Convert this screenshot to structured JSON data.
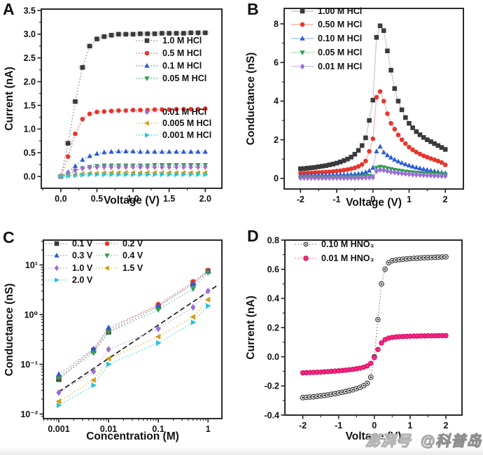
{
  "page": {
    "background": "#ffffff"
  },
  "watermark": {
    "platform": "澎湃号",
    "account": "@科普岛"
  },
  "palette": {
    "black": "#3a3a3a",
    "red": "#e8352c",
    "blue": "#2b5cd7",
    "green": "#2f9e50",
    "purple": "#9c6cd3",
    "gold": "#d49a18",
    "cyan": "#25c5d8",
    "pink": "#f5277f"
  },
  "chart_data": [
    {
      "panel_label": "A",
      "type": "line",
      "xlabel": "Voltage (V)",
      "ylabel": "Current (nA)",
      "xscale": "linear",
      "yscale": "linear",
      "xlim": [
        -0.27,
        2.23
      ],
      "ylim": [
        -0.25,
        3.53
      ],
      "xticks": [
        0,
        0.5,
        1,
        1.5,
        2
      ],
      "xtick_labels": [
        "0.0",
        "0.5",
        "1.0",
        "1.5",
        "2.0"
      ],
      "yticks": [
        0,
        0.5,
        1,
        1.5,
        2,
        2.5,
        3,
        3.5
      ],
      "ytick_labels": [
        "0.0",
        "0.5",
        "1.0",
        "1.5",
        "2.0",
        "2.5",
        "3.0",
        "3.5"
      ],
      "grid": false,
      "legend_position": "inside right, two groups",
      "x": [
        0,
        0.1,
        0.2,
        0.3,
        0.4,
        0.5,
        0.6,
        0.7,
        0.8,
        0.9,
        1.0,
        1.1,
        1.2,
        1.3,
        1.4,
        1.5,
        1.6,
        1.7,
        1.8,
        1.9,
        2.0
      ],
      "series": [
        {
          "name": "1.0 M HCl",
          "marker": "square",
          "color": "#3a3a3a",
          "line_color": "#8a8a8a",
          "line_style": "dotted",
          "halo": true,
          "values": [
            0.0,
            0.7,
            1.58,
            2.3,
            2.75,
            2.9,
            2.95,
            2.98,
            3.0,
            3.0,
            3.0,
            3.01,
            3.01,
            3.01,
            3.02,
            3.02,
            3.02,
            3.02,
            3.03,
            3.03,
            3.03
          ]
        },
        {
          "name": "0.5 M HCl",
          "marker": "circle",
          "color": "#e8352c",
          "line_color": "#ef5850",
          "line_style": "dotted",
          "values": [
            0.0,
            0.42,
            0.9,
            1.21,
            1.32,
            1.36,
            1.37,
            1.38,
            1.39,
            1.39,
            1.4,
            1.4,
            1.4,
            1.41,
            1.41,
            1.41,
            1.42,
            1.42,
            1.42,
            1.42,
            1.43
          ]
        },
        {
          "name": "0.1 M HCl",
          "marker": "triangle-up",
          "color": "#2b5cd7",
          "line_color": "#5b7ee0",
          "line_style": "dotted",
          "values": [
            0.0,
            0.09,
            0.22,
            0.35,
            0.43,
            0.48,
            0.51,
            0.52,
            0.53,
            0.53,
            0.53,
            0.52,
            0.52,
            0.52,
            0.52,
            0.52,
            0.52,
            0.52,
            0.52,
            0.52,
            0.52
          ]
        },
        {
          "name": "0.05 M HCl",
          "marker": "triangle-down",
          "color": "#2f9e50",
          "line_color": "#53ae74",
          "line_style": "dotted",
          "values": [
            0.0,
            0.05,
            0.12,
            0.17,
            0.2,
            0.22,
            0.23,
            0.23,
            0.23,
            0.23,
            0.23,
            0.23,
            0.23,
            0.24,
            0.24,
            0.24,
            0.24,
            0.24,
            0.24,
            0.24,
            0.24
          ]
        },
        {
          "name": "0.01 M HCl",
          "marker": "diamond",
          "color": "#9c6cd3",
          "line_color": "#b491e0",
          "line_style": "dotted",
          "values": [
            0.0,
            0.06,
            0.13,
            0.17,
            0.19,
            0.2,
            0.2,
            0.2,
            0.2,
            0.2,
            0.2,
            0.2,
            0.2,
            0.2,
            0.2,
            0.2,
            0.2,
            0.2,
            0.2,
            0.2,
            0.2
          ]
        },
        {
          "name": "0.005 M HCl",
          "marker": "triangle-left",
          "color": "#d49a18",
          "line_color": "#dfb23f",
          "line_style": "dotted",
          "values": [
            0.0,
            0.02,
            0.04,
            0.06,
            0.07,
            0.07,
            0.08,
            0.08,
            0.08,
            0.08,
            0.08,
            0.08,
            0.08,
            0.08,
            0.08,
            0.08,
            0.08,
            0.08,
            0.08,
            0.08,
            0.08
          ]
        },
        {
          "name": "0.001 M HCl",
          "marker": "triangle-right",
          "color": "#25c5d8",
          "line_color": "#3fd0de",
          "line_style": "dotted",
          "values": [
            0.0,
            0.01,
            0.02,
            0.03,
            0.04,
            0.04,
            0.04,
            0.04,
            0.04,
            0.04,
            0.04,
            0.04,
            0.04,
            0.04,
            0.04,
            0.04,
            0.04,
            0.04,
            0.04,
            0.04,
            0.04
          ]
        }
      ]
    },
    {
      "panel_label": "B",
      "type": "line",
      "xlabel": "Voltage (V)",
      "ylabel": "Conductance (nS)",
      "xscale": "linear",
      "yscale": "linear",
      "xlim": [
        -2.45,
        2.5
      ],
      "ylim": [
        -0.55,
        8.8
      ],
      "xticks": [
        -2,
        -1,
        0,
        1,
        2
      ],
      "xtick_labels": [
        "-2",
        "-1",
        "0",
        "1",
        "2"
      ],
      "yticks": [
        0,
        2,
        4,
        6,
        8
      ],
      "ytick_labels": [
        "0",
        "2",
        "4",
        "6",
        "8"
      ],
      "grid": false,
      "legend_position": "upper left",
      "x": [
        -2.0,
        -1.9,
        -1.8,
        -1.7,
        -1.6,
        -1.5,
        -1.4,
        -1.3,
        -1.2,
        -1.1,
        -1.0,
        -0.9,
        -0.8,
        -0.7,
        -0.6,
        -0.5,
        -0.4,
        -0.3,
        -0.2,
        -0.1,
        0.0,
        0.1,
        0.2,
        0.3,
        0.4,
        0.5,
        0.6,
        0.7,
        0.8,
        0.9,
        1.0,
        1.1,
        1.2,
        1.3,
        1.4,
        1.5,
        1.6,
        1.7,
        1.8,
        1.9,
        2.0
      ],
      "series": [
        {
          "name": "1.00 M HCl",
          "marker": "square",
          "color": "#3a3a3a",
          "line_color": "#c7c7c7",
          "line_style": "solid",
          "values": [
            0.5,
            0.51,
            0.53,
            0.55,
            0.57,
            0.6,
            0.63,
            0.66,
            0.7,
            0.74,
            0.79,
            0.85,
            0.92,
            1.0,
            1.1,
            1.25,
            1.45,
            1.7,
            2.1,
            3.0,
            4.05,
            7.3,
            7.9,
            7.65,
            6.6,
            5.6,
            4.65,
            4.0,
            3.55,
            3.15,
            2.85,
            2.62,
            2.42,
            2.26,
            2.12,
            2.0,
            1.9,
            1.8,
            1.7,
            1.6,
            1.5
          ]
        },
        {
          "name": "0.50 M HCl",
          "marker": "circle",
          "color": "#e8352c",
          "line_color": "#f5b5b0",
          "line_style": "solid",
          "values": [
            0.27,
            0.27,
            0.28,
            0.29,
            0.3,
            0.31,
            0.32,
            0.33,
            0.34,
            0.36,
            0.38,
            0.4,
            0.43,
            0.46,
            0.5,
            0.55,
            0.62,
            0.72,
            0.9,
            1.4,
            2.05,
            4.2,
            4.5,
            4.0,
            3.35,
            2.85,
            2.55,
            2.25,
            2.0,
            1.8,
            1.62,
            1.48,
            1.36,
            1.26,
            1.17,
            1.1,
            1.03,
            0.96,
            0.9,
            0.82,
            0.7
          ]
        },
        {
          "name": "0.10 M HCl",
          "marker": "triangle-up",
          "color": "#2b5cd7",
          "line_color": "#b5c5f0",
          "line_style": "solid",
          "values": [
            0.15,
            0.15,
            0.15,
            0.16,
            0.16,
            0.16,
            0.17,
            0.17,
            0.17,
            0.18,
            0.18,
            0.19,
            0.19,
            0.2,
            0.21,
            0.22,
            0.24,
            0.27,
            0.32,
            0.4,
            0.55,
            1.4,
            1.65,
            1.35,
            1.2,
            1.08,
            0.97,
            0.88,
            0.8,
            0.73,
            0.67,
            0.61,
            0.56,
            0.52,
            0.48,
            0.44,
            0.4,
            0.37,
            0.33,
            0.3,
            0.27
          ]
        },
        {
          "name": "0.05 M HCl",
          "marker": "triangle-down",
          "color": "#2f9e50",
          "line_color": "#bfe0c8",
          "line_style": "solid",
          "values": [
            0.05,
            0.05,
            0.05,
            0.05,
            0.05,
            0.05,
            0.05,
            0.06,
            0.06,
            0.06,
            0.06,
            0.07,
            0.07,
            0.07,
            0.08,
            0.08,
            0.09,
            0.1,
            0.11,
            0.13,
            0.1,
            0.55,
            0.6,
            0.57,
            0.52,
            0.48,
            0.44,
            0.41,
            0.38,
            0.35,
            0.33,
            0.31,
            0.29,
            0.28,
            0.26,
            0.25,
            0.24,
            0.23,
            0.22,
            0.21,
            0.2
          ]
        },
        {
          "name": "0.01 M HCl",
          "marker": "diamond",
          "color": "#9c6cd3",
          "line_color": "#d5c5ef",
          "line_style": "solid",
          "values": [
            0.02,
            0.02,
            0.02,
            0.02,
            0.02,
            0.02,
            0.02,
            0.02,
            0.02,
            0.02,
            0.02,
            0.02,
            0.02,
            0.02,
            0.02,
            0.02,
            0.03,
            0.03,
            0.04,
            0.05,
            0.05,
            0.38,
            0.45,
            0.42,
            0.38,
            0.34,
            0.31,
            0.28,
            0.26,
            0.24,
            0.22,
            0.2,
            0.19,
            0.18,
            0.17,
            0.16,
            0.15,
            0.14,
            0.13,
            0.12,
            0.12
          ]
        }
      ]
    },
    {
      "panel_label": "C",
      "type": "line",
      "xlabel": "Concentration (M)",
      "ylabel": "Conductance (nS)",
      "xscale": "log",
      "yscale": "log",
      "xlim": [
        0.00049,
        1.9
      ],
      "ylim": [
        0.0081,
        31.6
      ],
      "xticks": [
        0.001,
        0.01,
        0.1,
        1
      ],
      "xtick_labels": [
        "0.001",
        "0.01",
        "0.1",
        "1"
      ],
      "yticks": [
        0.01,
        0.1,
        1,
        10
      ],
      "ytick_labels": [
        "10⁻²",
        "10⁻¹",
        "10⁰",
        "10¹"
      ],
      "grid": false,
      "legend_position": "upper left, two columns",
      "x": [
        0.001,
        0.005,
        0.01,
        0.1,
        0.5,
        1
      ],
      "series": [
        {
          "name": "0.1 V",
          "marker": "square",
          "color": "#3a3a3a",
          "line_color": "#9a9a9a",
          "line_style": "dotted",
          "values": [
            0.05,
            0.19,
            0.45,
            1.45,
            4.3,
            7.5
          ]
        },
        {
          "name": "0.2 V",
          "marker": "circle",
          "color": "#e8352c",
          "line_color": "#f57f78",
          "line_style": "dotted",
          "values": [
            0.055,
            0.2,
            0.5,
            1.6,
            4.6,
            7.8
          ]
        },
        {
          "name": "0.3 V",
          "marker": "triangle-up",
          "color": "#2b5cd7",
          "line_color": "#8aa4e8",
          "line_style": "dotted",
          "values": [
            0.063,
            0.205,
            0.55,
            1.5,
            4.1,
            7.4
          ]
        },
        {
          "name": "0.4 V",
          "marker": "triangle-down",
          "color": "#2f9e50",
          "line_color": "#7cc695",
          "line_style": "dotted",
          "values": [
            0.052,
            0.17,
            0.44,
            1.25,
            3.3,
            7.0
          ]
        },
        {
          "name": "1.0 V",
          "marker": "diamond",
          "color": "#9c6cd3",
          "line_color": "#bfa3e8",
          "line_style": "dotted",
          "values": [
            0.027,
            0.072,
            0.2,
            0.52,
            1.4,
            3.0
          ]
        },
        {
          "name": "1.5 V",
          "marker": "triangle-left",
          "color": "#d49a18",
          "line_color": "#e8bc55",
          "line_style": "dotted",
          "values": [
            0.018,
            0.048,
            0.13,
            0.36,
            0.9,
            2.0
          ]
        },
        {
          "name": "2.0 V",
          "marker": "triangle-right",
          "color": "#25c5d8",
          "line_color": "#55d6e4",
          "line_style": "dotted",
          "values": [
            0.015,
            0.038,
            0.1,
            0.27,
            0.7,
            1.5
          ]
        }
      ],
      "ref_line": {
        "name": "linear-fit-dashed",
        "color": "#1a1a1a",
        "line_style": "dashed",
        "x": [
          0.001,
          1.5
        ],
        "values": [
          0.028,
          3.8
        ]
      }
    },
    {
      "panel_label": "D",
      "type": "line",
      "xlabel": "Voltage (V)",
      "ylabel": "Current (nA)",
      "xscale": "linear",
      "yscale": "linear",
      "xlim": [
        -2.5,
        2.45
      ],
      "ylim": [
        -0.4,
        0.8
      ],
      "xticks": [
        -2,
        -1,
        0,
        1,
        2
      ],
      "xtick_labels": [
        "-2",
        "-1",
        "0",
        "1",
        "2"
      ],
      "yticks": [
        -0.4,
        -0.2,
        0,
        0.2,
        0.4,
        0.6,
        0.8
      ],
      "ytick_labels": [
        "-0.4",
        "-0.2",
        "0.0",
        "0.2",
        "0.4",
        "0.6",
        "0.8"
      ],
      "grid": false,
      "legend_position": "upper left",
      "x": [
        -2.0,
        -1.9,
        -1.8,
        -1.7,
        -1.6,
        -1.5,
        -1.4,
        -1.3,
        -1.2,
        -1.1,
        -1.0,
        -0.9,
        -0.8,
        -0.7,
        -0.6,
        -0.5,
        -0.4,
        -0.3,
        -0.2,
        -0.1,
        0.0,
        0.1,
        0.2,
        0.3,
        0.4,
        0.5,
        0.6,
        0.7,
        0.8,
        0.9,
        1.0,
        1.1,
        1.2,
        1.3,
        1.4,
        1.5,
        1.6,
        1.7,
        1.8,
        1.9,
        2.0
      ],
      "series": [
        {
          "name": "0.10 M HNO₃",
          "marker": "ball",
          "color": "#2f2f2f",
          "line_color": "#8a8a8a",
          "line_style": "dotted",
          "values": [
            -0.28,
            -0.278,
            -0.276,
            -0.274,
            -0.271,
            -0.268,
            -0.265,
            -0.261,
            -0.257,
            -0.253,
            -0.248,
            -0.243,
            -0.238,
            -0.232,
            -0.226,
            -0.218,
            -0.21,
            -0.198,
            -0.182,
            -0.14,
            0.0,
            0.255,
            0.5,
            0.6,
            0.645,
            0.658,
            0.663,
            0.666,
            0.669,
            0.671,
            0.673,
            0.675,
            0.676,
            0.678,
            0.679,
            0.68,
            0.681,
            0.682,
            0.683,
            0.684,
            0.685
          ]
        },
        {
          "name": "0.01 M HNO₃",
          "marker": "circle",
          "color": "#f5277f",
          "line_color": "#f777ac",
          "line_style": "dotted",
          "edge": "#c9005e",
          "values": [
            -0.11,
            -0.109,
            -0.108,
            -0.107,
            -0.106,
            -0.105,
            -0.103,
            -0.102,
            -0.1,
            -0.098,
            -0.096,
            -0.094,
            -0.092,
            -0.089,
            -0.086,
            -0.082,
            -0.078,
            -0.072,
            -0.063,
            -0.045,
            -0.005,
            0.05,
            0.095,
            0.118,
            0.128,
            0.133,
            0.136,
            0.138,
            0.139,
            0.14,
            0.141,
            0.142,
            0.142,
            0.143,
            0.143,
            0.144,
            0.144,
            0.144,
            0.145,
            0.145,
            0.145
          ]
        }
      ]
    }
  ]
}
